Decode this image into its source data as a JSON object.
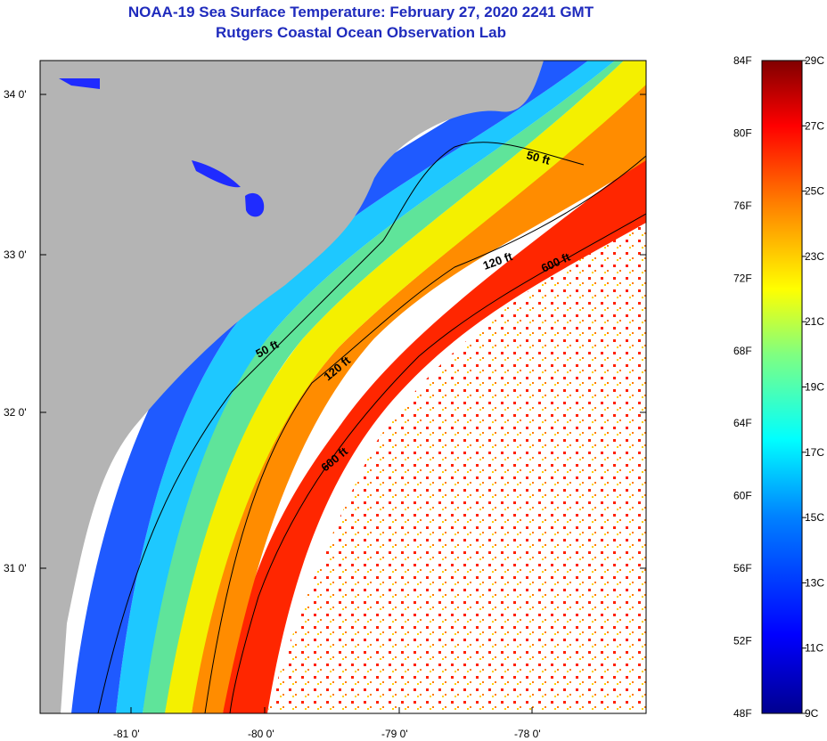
{
  "title": "NOAA-19 Sea Surface Temperature:  February 27, 2020 2241 GMT",
  "subtitle": "Rutgers Coastal Ocean Observation Lab",
  "map": {
    "lat_labels": [
      "34 0'",
      "33 0'",
      "32 0'",
      "31 0'"
    ],
    "lon_labels": [
      "-81 0'",
      "-80 0'",
      "-79 0'",
      "-78 0'"
    ],
    "contour_labels": [
      {
        "text": "50 ft"
      },
      {
        "text": "120 ft"
      },
      {
        "text": "600 ft"
      },
      {
        "text": "50 ft"
      },
      {
        "text": "120 ft"
      },
      {
        "text": "600 ft"
      }
    ],
    "land_color": "#b4b4b4",
    "cloud_color": "#ffffff"
  },
  "colorbar": {
    "f_labels": [
      "84F",
      "80F",
      "76F",
      "72F",
      "68F",
      "64F",
      "60F",
      "56F",
      "52F",
      "48F"
    ],
    "c_labels": [
      "29C",
      "27C",
      "25C",
      "23C",
      "21C",
      "19C",
      "17C",
      "15C",
      "13C",
      "11C",
      "9C"
    ],
    "colors": [
      "#00008f",
      "#0000ff",
      "#0080ff",
      "#00ffff",
      "#80ff80",
      "#ffff00",
      "#ff8000",
      "#ff0000",
      "#800000"
    ]
  }
}
